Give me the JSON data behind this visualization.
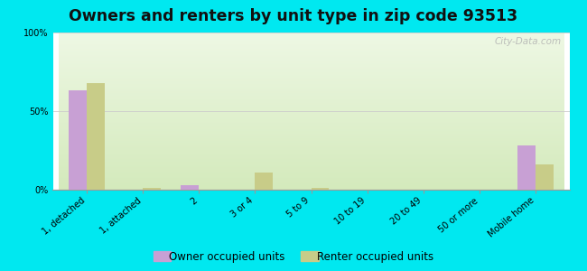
{
  "title": "Owners and renters by unit type in zip code 93513",
  "categories": [
    "1, detached",
    "1, attached",
    "2",
    "3 or 4",
    "5 to 9",
    "10 to 19",
    "20 to 49",
    "50 or more",
    "Mobile home"
  ],
  "owner_values": [
    63,
    0,
    3,
    0,
    0,
    0,
    0,
    0,
    28
  ],
  "renter_values": [
    68,
    1,
    0,
    11,
    1,
    0,
    0,
    0,
    16
  ],
  "owner_color": "#c8a0d4",
  "renter_color": "#c8cc88",
  "background_outer": "#00e8f0",
  "background_inner_top": "#eef8e4",
  "background_inner_bottom": "#d4eabc",
  "ylim": [
    0,
    100
  ],
  "yticks": [
    0,
    50,
    100
  ],
  "ytick_labels": [
    "0%",
    "50%",
    "100%"
  ],
  "watermark": "City-Data.com",
  "legend_owner": "Owner occupied units",
  "legend_renter": "Renter occupied units",
  "bar_width": 0.32,
  "title_fontsize": 12.5,
  "tick_fontsize": 7,
  "legend_fontsize": 8.5
}
